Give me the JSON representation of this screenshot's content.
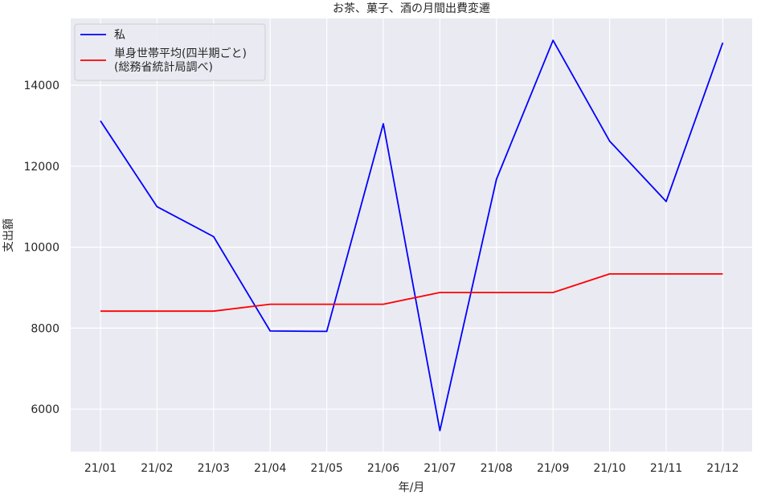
{
  "chart_data": {
    "type": "line",
    "title": "お茶、菓子、酒の月間出費変遷",
    "xlabel": "年/月",
    "ylabel": "支出額",
    "categories": [
      "21/01",
      "21/02",
      "21/03",
      "21/04",
      "21/05",
      "21/06",
      "21/07",
      "21/08",
      "21/09",
      "21/10",
      "21/11",
      "21/12"
    ],
    "y_ticks": [
      6000,
      8000,
      10000,
      12000,
      14000
    ],
    "y_tick_labels": [
      "6000",
      "8000",
      "10000",
      "12000",
      "14000"
    ],
    "ylim": [
      4950,
      15650
    ],
    "grid": true,
    "legend_position": "upper-left",
    "series": [
      {
        "name": "私",
        "color": "#0000ff",
        "values": [
          13120,
          11000,
          10260,
          7930,
          7920,
          13050,
          5470,
          11680,
          15110,
          12620,
          11130,
          15050
        ]
      },
      {
        "name": "単身世帯平均(四半期ごと)\n(総務省統計局調べ)",
        "legend_lines": [
          "単身世帯平均(四半期ごと)",
          "(総務省統計局調べ)"
        ],
        "color": "#ff0000",
        "values": [
          8420,
          8420,
          8420,
          8590,
          8590,
          8590,
          8880,
          8880,
          8880,
          9340,
          9340,
          9340
        ]
      }
    ]
  }
}
